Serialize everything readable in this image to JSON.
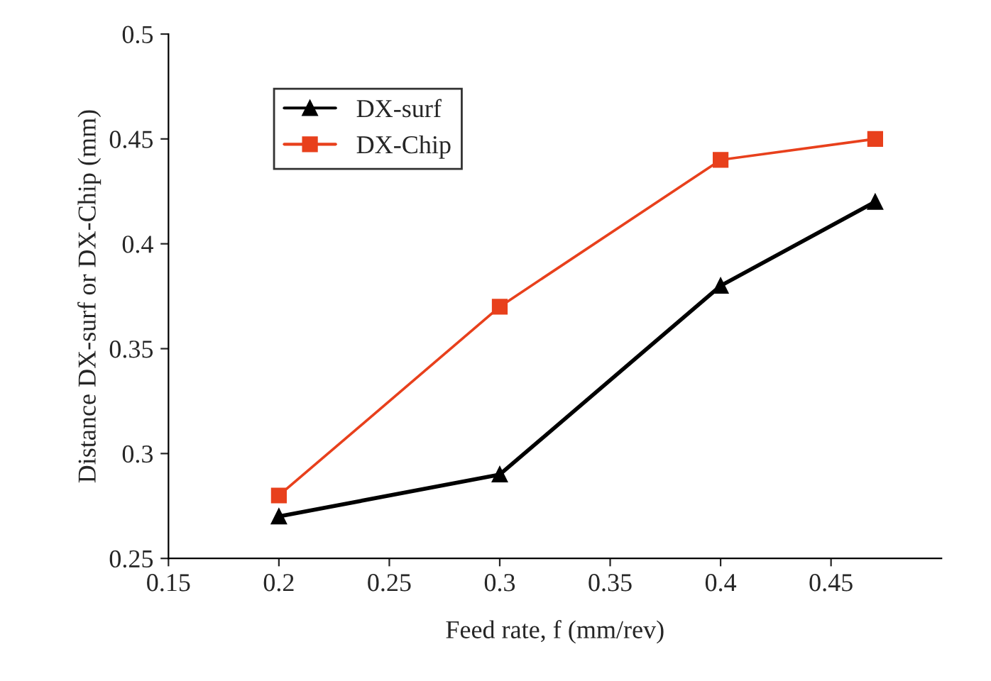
{
  "chart_data": {
    "type": "line",
    "xlabel": "Feed rate, f (mm/rev)",
    "ylabel": "Distance DX-surf or DX-Chip (mm)",
    "xlim": [
      0.15,
      0.5
    ],
    "xticks": [
      0.15,
      0.2,
      0.25,
      0.3,
      0.35,
      0.4,
      0.45
    ],
    "ylim": [
      0.25,
      0.5
    ],
    "yticks": [
      0.25,
      0.3,
      0.35,
      0.4,
      0.45,
      0.5
    ],
    "grid": false,
    "legend": "top left",
    "series": [
      {
        "name": "DX-surf",
        "color": "#000000",
        "marker": "triangle",
        "x": [
          0.2,
          0.3,
          0.4,
          0.47
        ],
        "values": [
          0.27,
          0.29,
          0.38,
          0.42
        ]
      },
      {
        "name": "DX-Chip",
        "color": "#e8401c",
        "marker": "square",
        "x": [
          0.2,
          0.3,
          0.4,
          0.47
        ],
        "values": [
          0.28,
          0.37,
          0.44,
          0.45
        ]
      }
    ]
  }
}
